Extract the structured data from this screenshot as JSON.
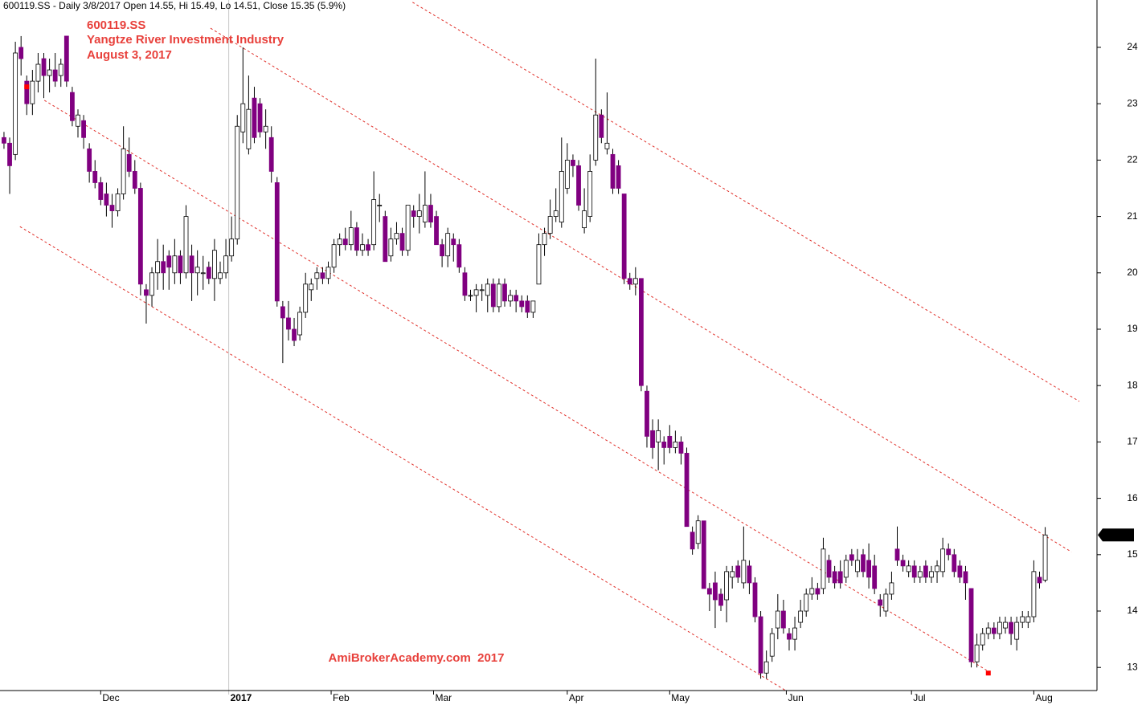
{
  "header": "600119.SS - Daily 3/8/2017 Open 14.55, Hi 15.49, Lo 14.51, Close 15.35 (5.9%)",
  "chart_data": {
    "type": "candlestick",
    "annotations": [
      "600119.SS",
      "Yangtze River Investment Industry",
      "August 3, 2017"
    ],
    "watermark": "AmiBrokerAcademy.com  2017",
    "up_color": "#ffffff",
    "down_color": "#800080",
    "annotation_color": "#e8413c",
    "xlim": [
      -0.7,
      192.1
    ],
    "xticks": [
      {
        "value": 17,
        "label": "Dec"
      },
      {
        "value": 57.5,
        "label": "Feb"
      },
      {
        "value": 75.5,
        "label": "Mar"
      },
      {
        "value": 99,
        "label": "Apr"
      },
      {
        "value": 117,
        "label": "May"
      },
      {
        "value": 137.5,
        "label": "Jun"
      },
      {
        "value": 159.5,
        "label": "Jul"
      },
      {
        "value": 181,
        "label": "Aug"
      }
    ],
    "year_marks": [
      {
        "value": 39.5,
        "label": "2017"
      }
    ],
    "ylim": [
      12.59,
      24.84
    ],
    "yticks": [
      13,
      14,
      15,
      16,
      17,
      18,
      19,
      20,
      21,
      22,
      23,
      24
    ],
    "open": [
      22.4,
      22.3,
      22.1,
      24.0,
      23.4,
      23.0,
      23.4,
      23.8,
      23.5,
      23.6,
      23.5,
      24.2,
      23.2,
      22.6,
      22.7,
      22.2,
      21.8,
      21.6,
      21.4,
      21.2,
      21.1,
      21.4,
      22.1,
      21.8,
      21.5,
      19.7,
      19.6,
      20.0,
      20.2,
      20.3,
      20.0,
      20.3,
      20.0,
      20.3,
      20.0,
      20.0,
      20.1,
      19.9,
      19.9,
      20.0,
      20.3,
      20.6,
      22.5,
      22.2,
      23.1,
      23.0,
      22.5,
      22.4,
      21.6,
      19.4,
      19.2,
      19.0,
      18.9,
      19.3,
      19.7,
      19.9,
      20.0,
      19.9,
      20.1,
      20.5,
      20.6,
      20.5,
      20.8,
      20.4,
      20.5,
      20.5,
      21.2,
      21.0,
      20.3,
      20.6,
      20.7,
      20.4,
      21.1,
      21.0,
      20.9,
      21.2,
      21.0,
      20.5,
      20.3,
      20.6,
      20.5,
      20.0,
      19.6,
      19.6,
      19.7,
      19.6,
      19.8,
      19.4,
      19.8,
      19.5,
      19.6,
      19.5,
      19.5,
      19.3,
      19.8,
      20.5,
      20.7,
      21.0,
      20.9,
      21.5,
      22.0,
      21.9,
      20.8,
      21.0,
      22.0,
      22.8,
      22.2,
      22.1,
      21.9,
      21.4,
      19.9,
      19.8,
      19.9,
      17.9,
      17.2,
      17.0,
      17.0,
      17.1,
      16.9,
      17.0,
      16.8,
      15.4,
      15.2,
      15.6,
      14.4,
      14.5,
      14.3,
      14.2,
      14.6,
      14.8,
      14.5,
      14.8,
      14.5,
      13.9,
      12.9,
      13.2,
      13.7,
      14.0,
      13.6,
      13.5,
      13.8,
      14.0,
      14.3,
      14.4,
      14.4,
      14.9,
      14.7,
      14.7,
      14.6,
      15.0,
      14.7,
      15.0,
      14.9,
      14.8,
      14.2,
      14.0,
      14.3,
      15.1,
      14.9,
      14.7,
      14.8,
      14.6,
      14.8,
      14.6,
      14.7,
      14.7,
      15.1,
      15.0,
      14.8,
      14.7,
      14.4,
      13.1,
      13.4,
      13.6,
      13.7,
      13.6,
      13.7,
      13.8,
      13.5,
      13.8,
      13.8,
      13.9,
      14.6,
      14.55
    ],
    "high": [
      22.5,
      22.4,
      24.1,
      24.2,
      23.5,
      23.6,
      23.9,
      23.9,
      23.8,
      23.9,
      23.8,
      24.2,
      23.3,
      22.9,
      22.8,
      22.3,
      22.0,
      21.7,
      21.6,
      21.4,
      21.5,
      22.6,
      22.4,
      22.0,
      21.6,
      19.8,
      20.1,
      20.6,
      20.5,
      20.4,
      20.6,
      20.4,
      21.2,
      20.5,
      20.4,
      20.3,
      20.2,
      20.6,
      20.2,
      20.6,
      21.0,
      22.8,
      24.0,
      23.5,
      23.3,
      23.1,
      22.9,
      22.6,
      21.7,
      19.5,
      19.5,
      19.2,
      19.4,
      20.0,
      19.9,
      20.1,
      20.1,
      20.2,
      20.6,
      20.7,
      20.8,
      21.1,
      20.9,
      20.7,
      20.6,
      21.8,
      21.4,
      21.1,
      20.8,
      20.9,
      20.8,
      21.2,
      21.2,
      21.4,
      21.8,
      21.4,
      21.1,
      20.6,
      20.8,
      20.7,
      20.6,
      20.1,
      19.7,
      19.8,
      19.8,
      19.9,
      19.9,
      19.9,
      19.9,
      19.7,
      19.7,
      19.6,
      19.6,
      19.5,
      20.7,
      20.8,
      21.3,
      21.5,
      22.4,
      22.3,
      22.1,
      22.0,
      21.5,
      22.1,
      23.8,
      22.9,
      23.2,
      22.2,
      22.0,
      21.4,
      20.0,
      20.1,
      19.9,
      18.0,
      17.4,
      17.4,
      17.1,
      17.3,
      17.2,
      17.1,
      16.9,
      15.5,
      15.7,
      15.6,
      14.5,
      14.7,
      14.4,
      14.8,
      14.8,
      14.9,
      15.5,
      14.9,
      14.6,
      14.0,
      13.3,
      13.7,
      14.3,
      14.2,
      13.7,
      13.9,
      14.2,
      14.4,
      14.6,
      14.5,
      15.3,
      15.0,
      14.8,
      14.9,
      15.0,
      15.1,
      15.1,
      15.1,
      15.2,
      15.0,
      14.3,
      14.4,
      14.7,
      15.5,
      15.0,
      14.9,
      14.9,
      14.8,
      14.9,
      14.8,
      14.9,
      15.3,
      15.2,
      15.1,
      14.9,
      14.8,
      14.4,
      13.6,
      13.7,
      13.8,
      13.8,
      13.9,
      13.9,
      13.9,
      13.9,
      14.0,
      14.0,
      14.9,
      14.7,
      15.49
    ],
    "low": [
      22.2,
      21.4,
      22.0,
      23.5,
      22.8,
      22.8,
      23.2,
      23.1,
      23.2,
      23.3,
      23.3,
      23.3,
      22.6,
      22.4,
      22.2,
      21.6,
      21.5,
      21.2,
      21.0,
      20.8,
      21.0,
      21.3,
      21.7,
      21.4,
      19.6,
      19.1,
      19.4,
      19.7,
      19.7,
      19.7,
      19.8,
      19.8,
      19.9,
      19.5,
      19.6,
      19.7,
      19.8,
      19.5,
      19.8,
      19.9,
      20.2,
      20.5,
      22.3,
      22.1,
      22.3,
      22.4,
      22.2,
      21.6,
      19.4,
      18.4,
      18.8,
      18.7,
      18.8,
      19.2,
      19.5,
      19.7,
      19.8,
      19.8,
      20.0,
      20.3,
      20.4,
      20.4,
      20.3,
      20.3,
      20.3,
      20.4,
      20.9,
      20.2,
      20.2,
      20.5,
      20.3,
      20.3,
      20.8,
      20.7,
      20.8,
      20.8,
      20.5,
      20.1,
      20.1,
      20.2,
      20.0,
      19.5,
      19.5,
      19.3,
      19.5,
      19.3,
      19.3,
      19.3,
      19.4,
      19.4,
      19.3,
      19.3,
      19.2,
      19.2,
      19.8,
      20.3,
      20.6,
      20.9,
      20.8,
      21.4,
      21.7,
      21.1,
      20.7,
      20.9,
      21.9,
      22.3,
      22.1,
      21.4,
      21.4,
      19.8,
      19.7,
      19.6,
      17.9,
      16.9,
      16.7,
      16.5,
      16.6,
      16.8,
      16.8,
      16.6,
      15.5,
      15.0,
      15.1,
      14.4,
      14.0,
      13.7,
      14.0,
      13.8,
      14.4,
      14.5,
      14.4,
      14.3,
      13.8,
      12.8,
      12.8,
      13.1,
      13.5,
      13.6,
      13.3,
      13.3,
      13.7,
      13.9,
      14.2,
      14.2,
      14.3,
      14.5,
      14.4,
      14.4,
      14.5,
      14.8,
      14.6,
      14.6,
      14.4,
      14.3,
      13.9,
      13.9,
      14.2,
      14.8,
      14.7,
      14.6,
      14.5,
      14.5,
      14.5,
      14.5,
      14.5,
      14.6,
      14.9,
      14.6,
      14.5,
      14.2,
      13.0,
      13.0,
      13.3,
      13.5,
      13.5,
      13.5,
      13.6,
      13.4,
      13.3,
      13.7,
      13.7,
      13.8,
      14.4,
      14.51
    ],
    "close": [
      22.3,
      21.9,
      23.9,
      23.8,
      23.0,
      23.4,
      23.7,
      23.5,
      23.6,
      23.4,
      23.7,
      23.4,
      22.7,
      22.8,
      22.4,
      21.8,
      21.6,
      21.3,
      21.2,
      21.1,
      21.4,
      22.2,
      21.8,
      21.5,
      19.8,
      19.6,
      20.0,
      20.2,
      20.0,
      20.1,
      20.3,
      20.0,
      21.0,
      20.0,
      20.1,
      20.0,
      19.9,
      20.4,
      20.0,
      20.3,
      20.6,
      22.6,
      23.0,
      22.9,
      22.4,
      22.5,
      22.6,
      21.8,
      19.5,
      19.2,
      19.0,
      18.8,
      19.3,
      19.8,
      19.8,
      20.0,
      19.9,
      20.1,
      20.5,
      20.6,
      20.5,
      20.8,
      20.4,
      20.5,
      20.4,
      21.3,
      21.2,
      20.2,
      20.6,
      20.7,
      20.4,
      21.2,
      21.0,
      21.1,
      21.2,
      20.9,
      20.5,
      20.3,
      20.7,
      20.5,
      20.1,
      19.6,
      19.6,
      19.7,
      19.7,
      19.8,
      19.4,
      19.8,
      19.5,
      19.6,
      19.5,
      19.4,
      19.3,
      19.5,
      20.5,
      20.7,
      21.0,
      21.1,
      21.8,
      22.0,
      21.9,
      21.2,
      21.1,
      21.8,
      22.8,
      22.4,
      22.3,
      21.5,
      21.5,
      19.9,
      19.8,
      19.9,
      18.0,
      17.1,
      16.9,
      17.2,
      16.9,
      16.9,
      17.0,
      16.8,
      15.5,
      15.1,
      15.6,
      14.4,
      14.3,
      14.2,
      14.1,
      14.7,
      14.7,
      14.6,
      14.9,
      14.5,
      13.9,
      12.9,
      13.1,
      13.6,
      14.0,
      13.7,
      13.5,
      13.7,
      14.0,
      14.3,
      14.4,
      14.3,
      15.1,
      14.6,
      14.5,
      14.5,
      14.9,
      14.9,
      14.9,
      14.7,
      14.6,
      14.4,
      14.1,
      14.3,
      14.5,
      14.9,
      14.8,
      14.8,
      14.6,
      14.7,
      14.6,
      14.7,
      14.8,
      15.1,
      15.0,
      14.7,
      14.6,
      14.5,
      13.1,
      13.4,
      13.6,
      13.7,
      13.6,
      13.8,
      13.8,
      13.6,
      13.8,
      13.9,
      13.9,
      14.7,
      14.5,
      15.35
    ],
    "trendlines": {
      "color": "#e0302a",
      "lines": [
        {
          "x": [
            71.8,
            189
          ],
          "y": [
            24.8,
            17.72
          ]
        },
        {
          "x": [
            36.3,
            187.6
          ],
          "y": [
            24.34,
            15.05
          ]
        },
        {
          "x": [
            7.1,
            172.7
          ],
          "y": [
            23.06,
            12.95
          ]
        },
        {
          "x": [
            2.8,
            137.4
          ],
          "y": [
            20.82,
            12.59
          ]
        }
      ]
    },
    "markers": {
      "color": "#ff0000",
      "x": [
        4,
        173
      ],
      "y": [
        23.3,
        12.9
      ]
    }
  }
}
